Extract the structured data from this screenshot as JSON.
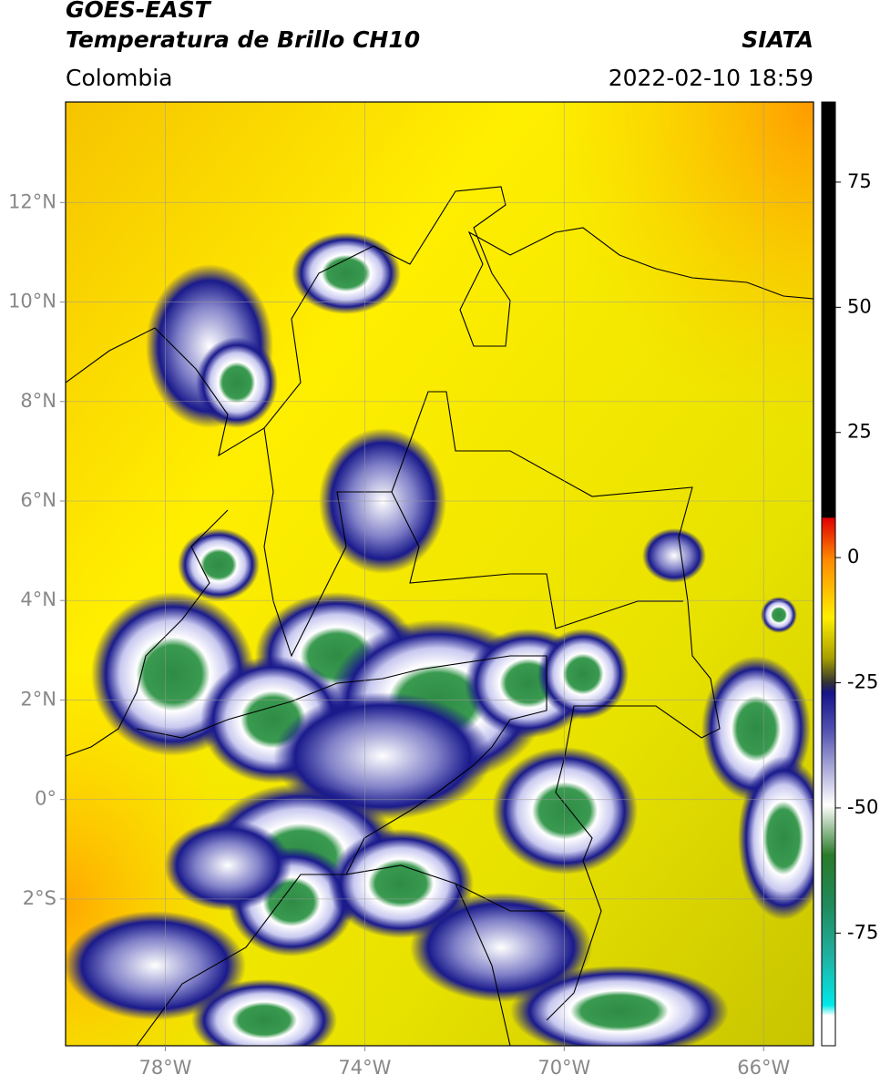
{
  "chart_data": {
    "type": "map",
    "title": "GOES-EAST",
    "subtitle": "Temperatura de Brillo CH10",
    "source": "SIATA",
    "region": "Colombia",
    "datetime": "2022-02-10 18:59",
    "xlim": [
      -80,
      -65
    ],
    "ylim": [
      -4.95,
      14.02
    ],
    "xticks": [
      {
        "value": -78,
        "label": "78°W"
      },
      {
        "value": -74,
        "label": "74°W"
      },
      {
        "value": -70,
        "label": "70°W"
      },
      {
        "value": -66,
        "label": "66°W"
      }
    ],
    "yticks": [
      {
        "value": 12,
        "label": "12°N"
      },
      {
        "value": 10,
        "label": "10°N"
      },
      {
        "value": 8,
        "label": "8°N"
      },
      {
        "value": 6,
        "label": "6°N"
      },
      {
        "value": 4,
        "label": "4°N"
      },
      {
        "value": 2,
        "label": "2°N"
      },
      {
        "value": 0,
        "label": "0°"
      },
      {
        "value": -2,
        "label": "2°S"
      }
    ],
    "grid": true,
    "colorbar_lim": [
      -97.5,
      91
    ],
    "colorbar_ticks": [
      75,
      50,
      25,
      0,
      -25,
      -50,
      -75
    ]
  }
}
